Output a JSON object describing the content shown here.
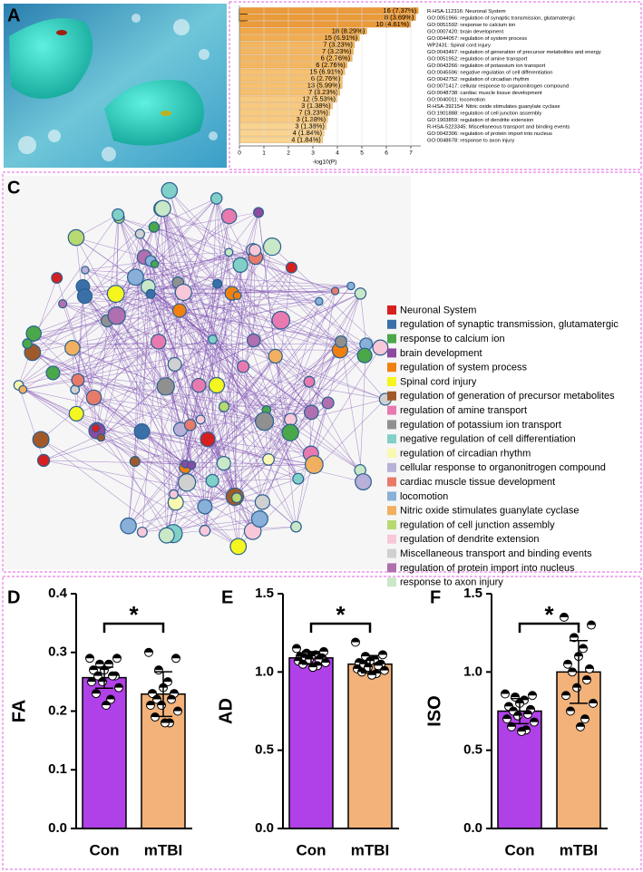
{
  "panel_labels": [
    "A",
    "B",
    "C",
    "D",
    "E",
    "F"
  ],
  "chart_data": [
    {
      "type": "hbar",
      "xlabel": "-log10(P)",
      "categories": [
        "R-HSA-112316: Neuronal System",
        "GO:0051966: regulation of synaptic transmission, glutamatergic",
        "GO:0051592: response to calcium ion",
        "GO:0007420: brain development",
        "GO:0044057: regulation of system process",
        "WP2431: Spinal cord injury",
        "GO:0043467: regulation of generation of precursor metabolites and energy",
        "GO:0051952: regulation of amine transport",
        "GO:0043266: regulation of potassium ion transport",
        "GO:0045596: negative regulation of cell differentiation",
        "GO:0042752: regulation of circadian rhythm",
        "GO:0071417: cellular response to organonitrogen compound",
        "GO:0048738: cardiac muscle tissue development",
        "GO:0040011: locomotion",
        "R-HSA-392154: Nitric oxide stimulates guanylate cyclase",
        "GO:1901888: regulation of cell junction assembly",
        "GO:1903859: regulation of dendrite extension",
        "R-HSA-5223345: Miscellaneous transport and binding events",
        "GO:0042306: regulation of protein import into nucleus",
        "GO:0048678: response to axon injury"
      ],
      "values": [
        7.3,
        7.2,
        7.0,
        5.2,
        4.9,
        4.7,
        4.65,
        4.6,
        4.4,
        4.3,
        4.2,
        4.2,
        4.1,
        4.0,
        3.8,
        3.7,
        3.6,
        3.55,
        3.45,
        3.4
      ],
      "annotations": [
        "16 (7.37%)",
        "8 (3.69%)",
        "10 (4.61%)",
        "18 (8.29%)",
        "15 (6.91%)",
        "7 (3.23%)",
        "7 (3.23%)",
        "6 (2.76%)",
        "6 (2.76%)",
        "15 (6.91%)",
        "6 (2.76%)",
        "13 (5.99%)",
        "7 (3.23%)",
        "12 (5.53%)",
        "3 (1.38%)",
        "7 (3.23%)",
        "3 (1.38%)",
        "3 (1.38%)",
        "4 (1.84%)",
        "4 (1.84%)"
      ],
      "colors": [
        "#eb9a3a",
        "#eb9a3a",
        "#eb9a3a",
        "#f0a84a",
        "#f1ad52",
        "#f3b660",
        "#f3b660",
        "#f3b660",
        "#f3b660",
        "#f5c070",
        "#f5c070",
        "#f5c070",
        "#f5c070",
        "#f7ca80",
        "#f7ca80",
        "#f7ca80",
        "#f7ca80",
        "#f9d490",
        "#f9d490",
        "#f9d490"
      ],
      "xlim": [
        0,
        7.4
      ],
      "xticks": [
        0,
        1,
        2,
        3,
        4,
        5,
        6,
        7
      ]
    },
    {
      "type": "network",
      "legend": [
        {
          "name": "Neuronal System",
          "color": "#d62020"
        },
        {
          "name": "regulation of synaptic transmission, glutamatergic",
          "color": "#3a6fa8"
        },
        {
          "name": "response to calcium ion",
          "color": "#4aa84a"
        },
        {
          "name": "brain development",
          "color": "#8c4aa0"
        },
        {
          "name": "regulation of system process",
          "color": "#f08010"
        },
        {
          "name": "Spinal cord injury",
          "color": "#f5f520"
        },
        {
          "name": "regulation of generation of precursor metabolites",
          "color": "#a05a2a"
        },
        {
          "name": "regulation of amine transport",
          "color": "#e87ab0"
        },
        {
          "name": "regulation of potassium ion transport",
          "color": "#909090"
        },
        {
          "name": "negative regulation of cell differentiation",
          "color": "#80d0c8"
        },
        {
          "name": "regulation of circadian rhythm",
          "color": "#f8f8b0"
        },
        {
          "name": "cellular response to organonitrogen compound",
          "color": "#b8b0d8"
        },
        {
          "name": "cardiac muscle tissue development",
          "color": "#e87a6a"
        },
        {
          "name": "locomotion",
          "color": "#88b0d8"
        },
        {
          "name": "Nitric oxide stimulates guanylate cyclase",
          "color": "#f0b060"
        },
        {
          "name": "regulation of cell junction assembly",
          "color": "#b8d870"
        },
        {
          "name": "regulation of dendrite extension",
          "color": "#f8c8d8"
        },
        {
          "name": "Miscellaneous transport and binding events",
          "color": "#d0d0d0"
        },
        {
          "name": "regulation of protein import into nucleus",
          "color": "#b070b0"
        },
        {
          "name": "response to axon injury",
          "color": "#c8e8c8"
        }
      ]
    },
    {
      "type": "bar",
      "ylabel": "FA",
      "categories": [
        "Con",
        "mTBI"
      ],
      "values": [
        0.257,
        0.229
      ],
      "errors": [
        0.018,
        0.038
      ],
      "colors": [
        "#b040e8",
        "#f2b27a"
      ],
      "annotation": "*",
      "points": [
        [
          0.29,
          0.29,
          0.28,
          0.28,
          0.27,
          0.27,
          0.26,
          0.26,
          0.26,
          0.25,
          0.25,
          0.24,
          0.23,
          0.22,
          0.21
        ],
        [
          0.3,
          0.29,
          0.27,
          0.25,
          0.24,
          0.23,
          0.23,
          0.22,
          0.22,
          0.21,
          0.21,
          0.2,
          0.19,
          0.18,
          0.18
        ]
      ],
      "ylim": [
        0,
        0.4
      ],
      "yticks": [
        {
          "value": 0,
          "label": "0.0"
        },
        0.1,
        0.2,
        0.3,
        0.4
      ]
    },
    {
      "type": "bar",
      "ylabel": "AD",
      "categories": [
        "Con",
        "mTBI"
      ],
      "values": [
        1.09,
        1.05
      ],
      "errors": [
        0.04,
        0.055
      ],
      "colors": [
        "#b040e8",
        "#f2b27a"
      ],
      "annotation": "*",
      "points": [
        [
          1.15,
          1.13,
          1.12,
          1.11,
          1.1,
          1.1,
          1.09,
          1.09,
          1.08,
          1.08,
          1.07,
          1.06,
          1.05,
          1.04,
          1.03
        ],
        [
          1.19,
          1.11,
          1.1,
          1.08,
          1.07,
          1.06,
          1.05,
          1.05,
          1.04,
          1.03,
          1.02,
          1.01,
          1.0,
          0.99,
          0.98
        ]
      ],
      "ylim": [
        0,
        1.5
      ],
      "yticks": [
        {
          "value": 0,
          "label": "0.0"
        },
        0.5,
        {
          "value": 1,
          "label": "1.0"
        },
        1.5
      ]
    },
    {
      "type": "bar",
      "ylabel": "ISO",
      "categories": [
        "Con",
        "mTBI"
      ],
      "values": [
        0.75,
        1.0
      ],
      "errors": [
        0.08,
        0.2
      ],
      "colors": [
        "#b040e8",
        "#f2b27a"
      ],
      "annotation": "*",
      "points": [
        [
          0.86,
          0.85,
          0.84,
          0.82,
          0.8,
          0.78,
          0.76,
          0.75,
          0.73,
          0.72,
          0.7,
          0.68,
          0.65,
          0.63,
          0.62
        ],
        [
          1.35,
          1.3,
          1.22,
          1.15,
          1.1,
          1.05,
          1.02,
          1.0,
          0.95,
          0.9,
          0.85,
          0.8,
          0.75,
          0.7,
          0.65
        ]
      ],
      "ylim": [
        0,
        1.5
      ],
      "yticks": [
        {
          "value": 0,
          "label": "0.0"
        },
        0.5,
        {
          "value": 1,
          "label": "1.0"
        },
        1.5
      ]
    }
  ]
}
